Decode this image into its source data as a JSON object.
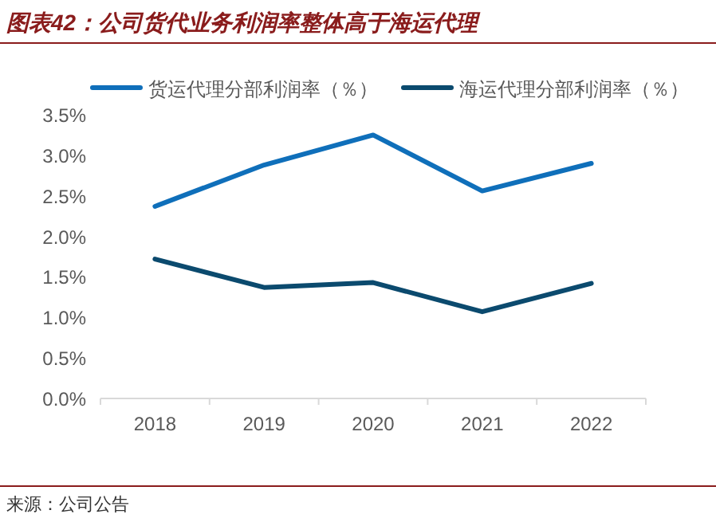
{
  "chart_data": {
    "type": "line",
    "title": "图表42：公司货代业务利润率整体高于海运代理",
    "categories": [
      "2018",
      "2019",
      "2020",
      "2021",
      "2022"
    ],
    "series": [
      {
        "name": "货运代理分部利润率（％）",
        "color": "#0f6fba",
        "values": [
          2.37,
          2.88,
          3.25,
          2.56,
          2.9
        ]
      },
      {
        "name": "海运代理分部利润率（％）",
        "color": "#0b4a6e",
        "values": [
          1.72,
          1.37,
          1.43,
          1.07,
          1.42
        ]
      }
    ],
    "ylim": [
      0,
      3.5
    ],
    "yticks": [
      {
        "value": 0,
        "label": "0.0%"
      },
      {
        "value": 0.5,
        "label": "0.5%"
      },
      {
        "value": 1,
        "label": "1.0%"
      },
      {
        "value": 1.5,
        "label": "1.5%"
      },
      {
        "value": 2,
        "label": "2.0%"
      },
      {
        "value": 2.5,
        "label": "2.5%"
      },
      {
        "value": 3,
        "label": "3.0%"
      },
      {
        "value": 3.5,
        "label": "3.5%"
      }
    ],
    "grid": false,
    "legend": "top",
    "marker": "none",
    "line_style": "solid",
    "annotations": [
      "来源：公司公告"
    ]
  }
}
